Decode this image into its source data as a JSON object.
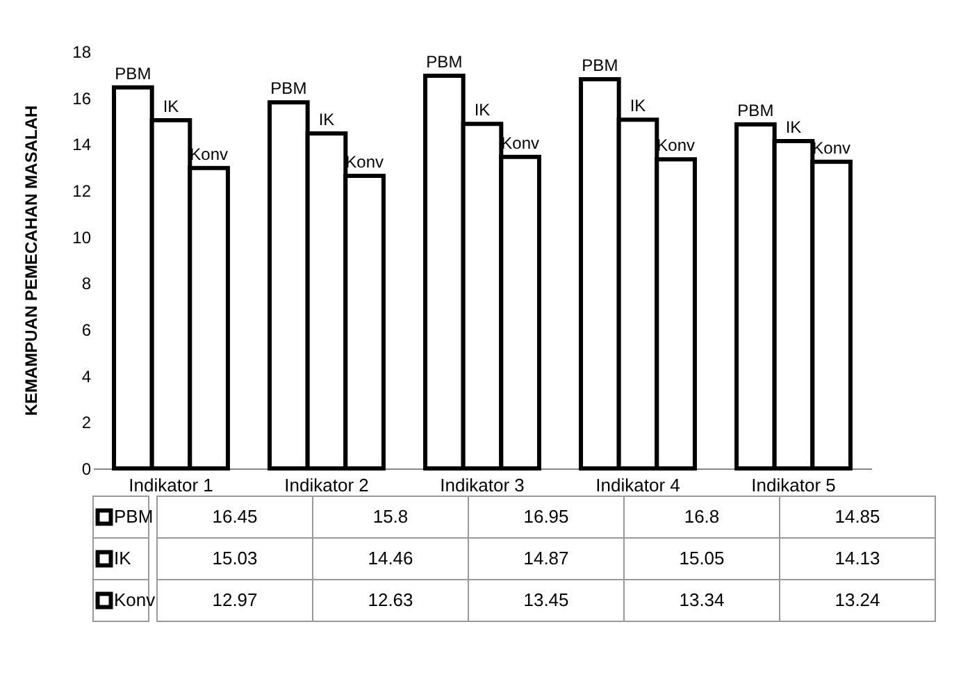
{
  "chart_data": {
    "type": "bar",
    "ylabel": "KEMAMPUAN PEMECAHAN MASALAH",
    "categories": [
      "Indikator 1",
      "Indikator 2",
      "Indikator 3",
      "Indikator 4",
      "Indikator 5"
    ],
    "series": [
      {
        "name": "PBM",
        "color": "#ffffff",
        "values": [
          16.45,
          15.8,
          16.95,
          16.8,
          14.85
        ]
      },
      {
        "name": "IK",
        "color": "#ffffff",
        "values": [
          15.03,
          14.46,
          14.87,
          15.05,
          14.13
        ]
      },
      {
        "name": "Konv",
        "color": "#ffffff",
        "values": [
          12.97,
          12.63,
          13.45,
          13.34,
          13.24
        ]
      }
    ],
    "ylim": [
      0,
      18
    ],
    "yticks": [
      0,
      2,
      4,
      6,
      8,
      10,
      12,
      14,
      16,
      18
    ],
    "data_labels": true,
    "legend": "bottom"
  }
}
